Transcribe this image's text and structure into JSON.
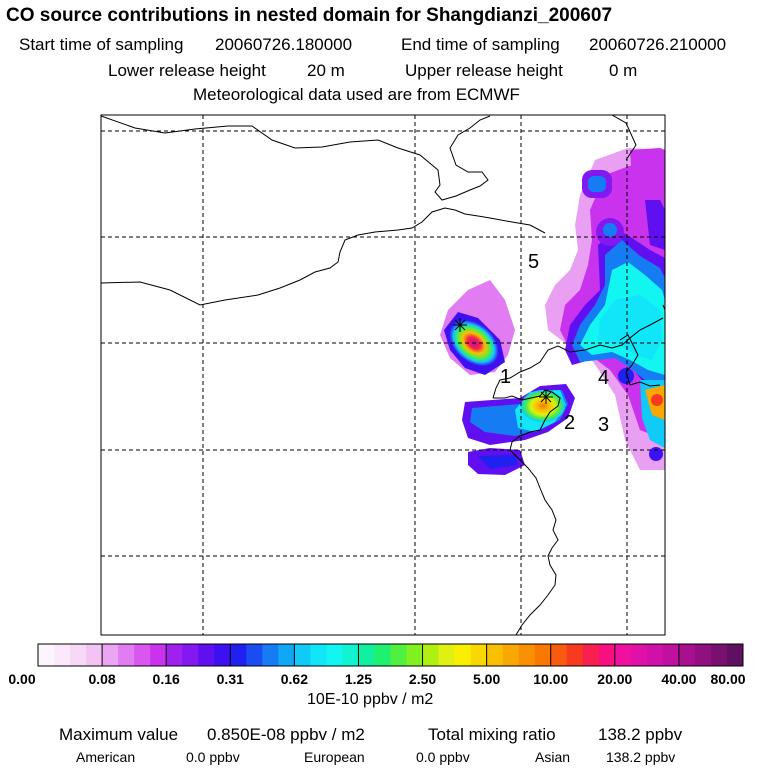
{
  "header": {
    "title": "CO  source contributions in nested domain for Shangdianzi_200607",
    "start_label": "Start time of sampling",
    "start_value": "20060726.180000",
    "end_label": "End time of sampling",
    "end_value": "20060726.210000",
    "lower_label": "Lower release height",
    "lower_value": "20 m",
    "upper_label": "Upper release height",
    "upper_value": "0 m",
    "met": "Meteorological data used are from ECMWF"
  },
  "map": {
    "region_labels": [
      "1",
      "2",
      "3",
      "4",
      "5"
    ],
    "colors": {
      "frame": "#000000",
      "grid": "#000000",
      "coast": "#000000"
    }
  },
  "colorbar": {
    "ticks": [
      "0.00",
      "0.08",
      "0.16",
      "0.31",
      "0.62",
      "1.25",
      "2.50",
      "5.00",
      "10.00",
      "20.00",
      "40.00",
      "80.00"
    ],
    "unit": "10E-10 ppbv / m2",
    "colors": [
      "#fdf5fd",
      "#fbe8fb",
      "#f7d8f7",
      "#f3c3f3",
      "#eca5f3",
      "#e27cf2",
      "#d957f0",
      "#c933ee",
      "#a020f0",
      "#8418f0",
      "#6010f0",
      "#3c10f0",
      "#2020f0",
      "#1b4cf2",
      "#167cf4",
      "#10a8f6",
      "#10caf8",
      "#10e6f8",
      "#12f5f0",
      "#10f5d0",
      "#10f0a0",
      "#20f070",
      "#50f040",
      "#80f020",
      "#b0f010",
      "#e0f010",
      "#f8f000",
      "#f8d800",
      "#f8c000",
      "#f8a800",
      "#f89000",
      "#f87800",
      "#f85a10",
      "#f83a20",
      "#f82050",
      "#f81080",
      "#f010a0",
      "#e010a8",
      "#d010a8",
      "#c010a0",
      "#a81090",
      "#901080",
      "#781070",
      "#601060"
    ]
  },
  "footer": {
    "max_label": "Maximum value",
    "max_value": "0.850E-08 ppbv / m2",
    "total_label": "Total mixing ratio",
    "total_value": "138.2 ppbv",
    "american_label": "American",
    "american_value": "0.0 ppbv",
    "european_label": "European",
    "european_value": "0.0 ppbv",
    "asian_label": "Asian",
    "asian_value": "138.2 ppbv"
  }
}
